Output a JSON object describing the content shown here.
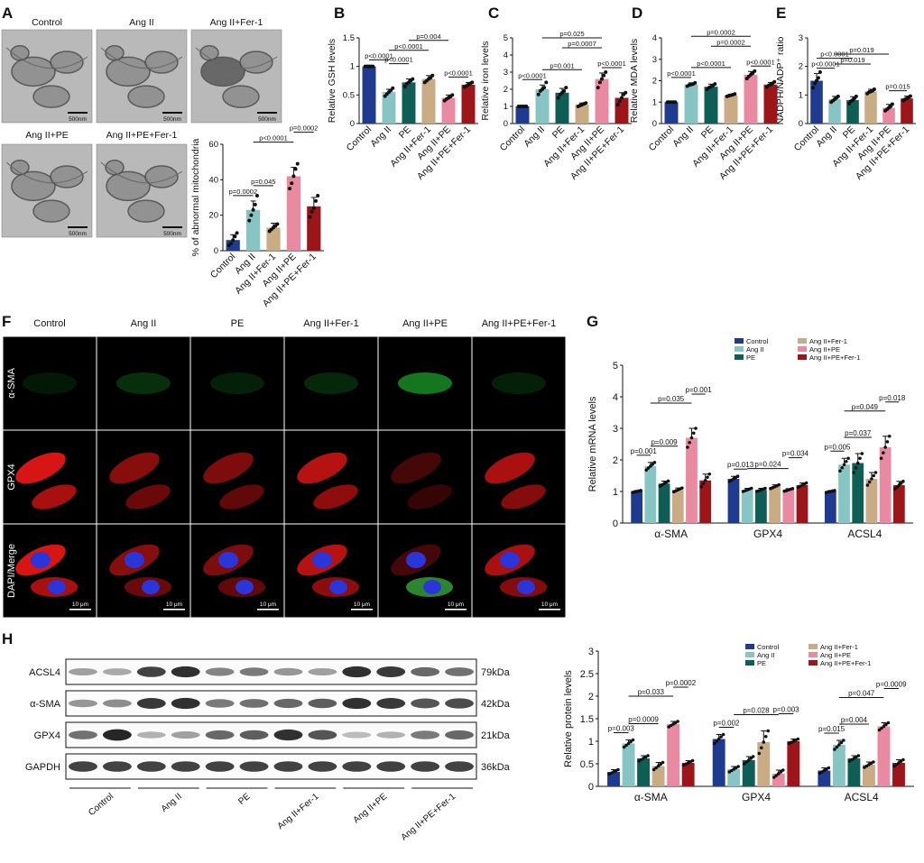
{
  "panels": {
    "A": {
      "letter": "A",
      "em_labels": [
        "Control",
        "Ang II",
        "Ang II+Fer-1",
        "Ang II+PE",
        "Ang II+PE+Fer-1"
      ],
      "scale": "500nm"
    },
    "F": {
      "letter": "F",
      "columns": [
        "Control",
        "Ang II",
        "PE",
        "Ang II+Fer-1",
        "Ang II+PE",
        "Ang II+PE+Fer-1"
      ],
      "rows": [
        "α-SMA",
        "GPX4",
        "DAPI/Merge"
      ],
      "scale": "10 μm"
    },
    "H": {
      "letter": "H",
      "blot_rows": [
        "ACSL4",
        "α-SMA",
        "GPX4",
        "GAPDH"
      ],
      "blot_sizes": [
        "79kDa",
        "42kDa",
        "21kDa",
        "36kDa"
      ],
      "lane_groups": [
        "Control",
        "Ang II",
        "PE",
        "Ang II+Fer-1",
        "Ang II+PE",
        "Ang II+PE+Fer-1"
      ],
      "band_intensity": {
        "ACSL4": [
          0.3,
          0.25,
          0.8,
          0.9,
          0.45,
          0.5,
          0.35,
          0.3,
          0.9,
          0.85,
          0.6,
          0.55
        ],
        "α-SMA": [
          0.35,
          0.4,
          0.85,
          0.9,
          0.5,
          0.55,
          0.6,
          0.65,
          0.9,
          0.85,
          0.7,
          0.75
        ],
        "GPX4": [
          0.55,
          0.95,
          0.2,
          0.3,
          0.6,
          0.65,
          0.9,
          0.7,
          0.15,
          0.2,
          0.5,
          0.6
        ],
        "GAPDH": [
          0.8,
          0.8,
          0.8,
          0.8,
          0.8,
          0.8,
          0.8,
          0.8,
          0.8,
          0.8,
          0.8,
          0.8
        ]
      }
    }
  },
  "colors": {
    "Control": "#1f3b8f",
    "Ang II": "#86c5c4",
    "PE": "#0f5e55",
    "Ang II+Fer-1": "#c9ac83",
    "Ang II+PE": "#ea8aa2",
    "Ang II+PE+Fer-1": "#9c1519"
  },
  "chart_data": [
    {
      "panel": "A",
      "type": "bar",
      "categories": [
        "Control",
        "Ang II",
        "Ang II+Fer-1",
        "Ang II+PE",
        "Ang II+PE+Fer-1"
      ],
      "values": [
        6,
        23,
        13,
        42,
        25
      ],
      "errors": [
        3,
        5,
        2.5,
        5,
        5
      ],
      "points": [
        [
          3,
          4,
          6,
          8,
          10
        ],
        [
          17,
          20,
          23,
          26,
          31
        ],
        [
          11,
          12,
          13,
          14,
          15
        ],
        [
          35,
          38,
          42,
          46,
          49
        ],
        [
          19,
          22,
          24,
          28,
          31
        ]
      ],
      "ylabel": "% of abnormal mitochondria",
      "ylim": [
        0,
        60
      ],
      "yticks": [
        0,
        20,
        40,
        60
      ],
      "pvalues": [
        {
          "a": 0,
          "b": 1,
          "text": "p=0.0002"
        },
        {
          "a": 1,
          "b": 2,
          "text": "p=0.045"
        },
        {
          "a": 1,
          "b": 3,
          "text": "p<0.0001"
        },
        {
          "a": 3,
          "b": 4,
          "text": "p=0.0002"
        }
      ]
    },
    {
      "panel": "B",
      "type": "bar",
      "categories": [
        "Control",
        "Ang II",
        "PE",
        "Ang II+Fer-1",
        "Ang II+PE",
        "Ang II+PE+Fer-1"
      ],
      "values": [
        1.0,
        0.55,
        0.72,
        0.78,
        0.45,
        0.68
      ],
      "errors": [
        0.02,
        0.05,
        0.06,
        0.06,
        0.05,
        0.04
      ],
      "points": [
        [
          1,
          1,
          1,
          1,
          1
        ],
        [
          0.48,
          0.52,
          0.55,
          0.58,
          0.62
        ],
        [
          0.65,
          0.7,
          0.72,
          0.75,
          0.78
        ],
        [
          0.72,
          0.75,
          0.78,
          0.8,
          0.84
        ],
        [
          0.4,
          0.43,
          0.45,
          0.47,
          0.5
        ],
        [
          0.64,
          0.66,
          0.68,
          0.7,
          0.72
        ]
      ],
      "ylabel": "Relative GSH levels",
      "ylim": [
        0,
        1.5
      ],
      "yticks": [
        0.0,
        0.5,
        1.0,
        1.5
      ],
      "pvalues": [
        {
          "a": 0,
          "b": 1,
          "text": "p<0.0001"
        },
        {
          "a": 1,
          "b": 2,
          "text": "p<0.0001"
        },
        {
          "a": 1,
          "b": 3,
          "text": "p<0.0001"
        },
        {
          "a": 2,
          "b": 4,
          "text": "p=0.004"
        },
        {
          "a": 4,
          "b": 5,
          "text": "p<0.0001"
        }
      ]
    },
    {
      "panel": "C",
      "type": "bar",
      "categories": [
        "Control",
        "Ang II",
        "PE",
        "Ang II+Fer-1",
        "Ang II+PE",
        "Ang II+PE+Fer-1"
      ],
      "values": [
        1.0,
        2.0,
        1.8,
        1.1,
        2.6,
        1.5
      ],
      "errors": [
        0.03,
        0.25,
        0.25,
        0.1,
        0.35,
        0.3
      ],
      "points": [
        [
          1,
          1,
          1,
          1,
          1
        ],
        [
          1.7,
          1.9,
          2.0,
          2.1,
          2.4
        ],
        [
          1.5,
          1.7,
          1.8,
          1.9,
          2.1
        ],
        [
          1.0,
          1.05,
          1.1,
          1.15,
          1.2
        ],
        [
          2.1,
          2.4,
          2.6,
          2.8,
          3.0
        ],
        [
          1.1,
          1.3,
          1.5,
          1.7,
          1.8
        ]
      ],
      "ylabel": "Relative iron levels",
      "ylim": [
        0,
        5
      ],
      "yticks": [
        0,
        1,
        2,
        3,
        4,
        5
      ],
      "pvalues": [
        {
          "a": 0,
          "b": 1,
          "text": "p<0.0001"
        },
        {
          "a": 1,
          "b": 3,
          "text": "p=0.001"
        },
        {
          "a": 2,
          "b": 4,
          "text": "p=0.0007"
        },
        {
          "a": 1,
          "b": 4,
          "text": "p=0.025"
        },
        {
          "a": 4,
          "b": 5,
          "text": "p<0.0001"
        }
      ]
    },
    {
      "panel": "D",
      "type": "bar",
      "categories": [
        "Control",
        "Ang II",
        "PE",
        "Ang II+Fer-1",
        "Ang II+PE",
        "Ang II+PE+Fer-1"
      ],
      "values": [
        1.0,
        1.82,
        1.72,
        1.32,
        2.28,
        1.82
      ],
      "errors": [
        0.02,
        0.08,
        0.12,
        0.05,
        0.15,
        0.1
      ],
      "points": [
        [
          1,
          1,
          1,
          1,
          1
        ],
        [
          1.75,
          1.8,
          1.82,
          1.85,
          1.9
        ],
        [
          1.6,
          1.68,
          1.72,
          1.78,
          1.85
        ],
        [
          1.27,
          1.3,
          1.32,
          1.35,
          1.38
        ],
        [
          2.1,
          2.2,
          2.28,
          2.35,
          2.45
        ],
        [
          1.7,
          1.78,
          1.82,
          1.88,
          1.95
        ]
      ],
      "ylabel": "Relative MDA levels",
      "ylim": [
        0,
        4
      ],
      "yticks": [
        0,
        1,
        2,
        3,
        4
      ],
      "pvalues": [
        {
          "a": 0,
          "b": 1,
          "text": "p<0.0001"
        },
        {
          "a": 1,
          "b": 3,
          "text": "p<0.0001"
        },
        {
          "a": 2,
          "b": 4,
          "text": "p=0.0002"
        },
        {
          "a": 1,
          "b": 4,
          "text": "p=0.0002"
        },
        {
          "a": 4,
          "b": 5,
          "text": "p<0.0001"
        }
      ]
    },
    {
      "panel": "E",
      "type": "bar",
      "categories": [
        "Control",
        "Ang II",
        "PE",
        "Ang II+Fer-1",
        "Ang II+PE",
        "Ang II+PE+Fer-1"
      ],
      "values": [
        1.5,
        0.85,
        0.82,
        1.12,
        0.55,
        0.88
      ],
      "errors": [
        0.25,
        0.1,
        0.12,
        0.08,
        0.12,
        0.08
      ],
      "points": [
        [
          1.25,
          1.4,
          1.5,
          1.6,
          1.8
        ],
        [
          0.75,
          0.8,
          0.85,
          0.9,
          0.95
        ],
        [
          0.7,
          0.78,
          0.82,
          0.88,
          0.95
        ],
        [
          1.05,
          1.1,
          1.12,
          1.15,
          1.2
        ],
        [
          0.45,
          0.5,
          0.55,
          0.6,
          0.68
        ],
        [
          0.8,
          0.85,
          0.88,
          0.92,
          0.96
        ]
      ],
      "ylabel": "NADPH/NADP⁺ ratio",
      "ylim": [
        0,
        3
      ],
      "yticks": [
        0,
        1,
        2,
        3
      ],
      "pvalues": [
        {
          "a": 0,
          "b": 1,
          "text": "p<0.0001"
        },
        {
          "a": 0,
          "b": 2,
          "text": "p<0.0001"
        },
        {
          "a": 1,
          "b": 3,
          "text": "p=0.019"
        },
        {
          "a": 1,
          "b": 4,
          "text": "p=0.019"
        },
        {
          "a": 4,
          "b": 5,
          "text": "p=0.015"
        }
      ]
    },
    {
      "panel": "G",
      "type": "bar",
      "groups": [
        "α-SMA",
        "GPX4",
        "ACSL4"
      ],
      "series": [
        {
          "name": "Control",
          "values": [
            1.0,
            1.4,
            1.0
          ],
          "errors": [
            0.03,
            0.08,
            0.03
          ]
        },
        {
          "name": "Ang II",
          "values": [
            1.8,
            1.05,
            1.85
          ],
          "errors": [
            0.12,
            0.05,
            0.2
          ]
        },
        {
          "name": "PE",
          "values": [
            1.25,
            1.05,
            1.9
          ],
          "errors": [
            0.08,
            0.05,
            0.3
          ]
        },
        {
          "name": "Ang II+Fer-1",
          "values": [
            1.05,
            1.15,
            1.4
          ],
          "errors": [
            0.06,
            0.06,
            0.2
          ]
        },
        {
          "name": "Ang II+PE",
          "values": [
            2.7,
            1.05,
            2.4
          ],
          "errors": [
            0.3,
            0.04,
            0.35
          ]
        },
        {
          "name": "Ang II+PE+Fer-1",
          "values": [
            1.35,
            1.2,
            1.2
          ],
          "errors": [
            0.2,
            0.07,
            0.12
          ]
        }
      ],
      "ylabel": "Relative mRNA levels",
      "ylim": [
        0,
        5
      ],
      "yticks": [
        0,
        1,
        2,
        3,
        4,
        5
      ],
      "legend": [
        "Control",
        "Ang II",
        "PE",
        "Ang II+Fer-1",
        "Ang II+PE",
        "Ang II+PE+Fer-1"
      ],
      "pvalues": [
        {
          "g": 0,
          "a": 0,
          "b": 1,
          "text": "p=0.001"
        },
        {
          "g": 0,
          "a": 1,
          "b": 3,
          "text": "p=0.009"
        },
        {
          "g": 0,
          "a": 1,
          "b": 4,
          "text": "p=0.035"
        },
        {
          "g": 0,
          "a": 4,
          "b": 5,
          "text": "p=0.001"
        },
        {
          "g": 1,
          "a": 0,
          "b": 1,
          "text": "p=0.013"
        },
        {
          "g": 1,
          "a": 1,
          "b": 4,
          "text": "p=0.024"
        },
        {
          "g": 1,
          "a": 4,
          "b": 5,
          "text": "p=0.034"
        },
        {
          "g": 2,
          "a": 0,
          "b": 1,
          "text": "p=0.005"
        },
        {
          "g": 2,
          "a": 1,
          "b": 3,
          "text": "p=0.037"
        },
        {
          "g": 2,
          "a": 1,
          "b": 4,
          "text": "p=0.049"
        },
        {
          "g": 2,
          "a": 4,
          "b": 5,
          "text": "p=0.018"
        }
      ]
    },
    {
      "panel": "H",
      "type": "bar",
      "groups": [
        "α-SMA",
        "GPX4",
        "ACSL4"
      ],
      "series": [
        {
          "name": "Control",
          "values": [
            0.32,
            1.05,
            0.35
          ],
          "errors": [
            0.05,
            0.1,
            0.06
          ]
        },
        {
          "name": "Ang II",
          "values": [
            0.95,
            0.38,
            0.92
          ],
          "errors": [
            0.08,
            0.06,
            0.1
          ]
        },
        {
          "name": "PE",
          "values": [
            0.62,
            0.58,
            0.62
          ],
          "errors": [
            0.06,
            0.08,
            0.06
          ]
        },
        {
          "name": "Ang II+Fer-1",
          "values": [
            0.45,
            0.98,
            0.48
          ],
          "errors": [
            0.08,
            0.25,
            0.06
          ]
        },
        {
          "name": "Ang II+PE",
          "values": [
            1.38,
            0.28,
            1.33
          ],
          "errors": [
            0.06,
            0.08,
            0.08
          ]
        },
        {
          "name": "Ang II+PE+Fer-1",
          "values": [
            0.52,
            1.0,
            0.52
          ],
          "errors": [
            0.05,
            0.05,
            0.07
          ]
        }
      ],
      "ylabel": "Relative protein levels",
      "ylim": [
        0,
        3
      ],
      "yticks": [
        0.0,
        0.5,
        1.0,
        1.5,
        2.0,
        2.5,
        3.0
      ],
      "legend": [
        "Control",
        "Ang II",
        "PE",
        "Ang II+Fer-1",
        "Ang II+PE",
        "Ang II+PE+Fer-1"
      ],
      "pvalues": [
        {
          "g": 0,
          "a": 0,
          "b": 1,
          "text": "p=0.003"
        },
        {
          "g": 0,
          "a": 1,
          "b": 3,
          "text": "p=0.0009"
        },
        {
          "g": 0,
          "a": 1,
          "b": 4,
          "text": "p=0.033"
        },
        {
          "g": 0,
          "a": 4,
          "b": 5,
          "text": "p=0.0002"
        },
        {
          "g": 1,
          "a": 0,
          "b": 1,
          "text": "p=0.002"
        },
        {
          "g": 1,
          "a": 1,
          "b": 4,
          "text": "p=0.028"
        },
        {
          "g": 1,
          "a": 4,
          "b": 5,
          "text": "p=0.003"
        },
        {
          "g": 2,
          "a": 0,
          "b": 1,
          "text": "p=0.015"
        },
        {
          "g": 2,
          "a": 1,
          "b": 3,
          "text": "p=0.004"
        },
        {
          "g": 2,
          "a": 1,
          "b": 4,
          "text": "p=0.047"
        },
        {
          "g": 2,
          "a": 4,
          "b": 5,
          "text": "p=0.0009"
        }
      ]
    }
  ]
}
